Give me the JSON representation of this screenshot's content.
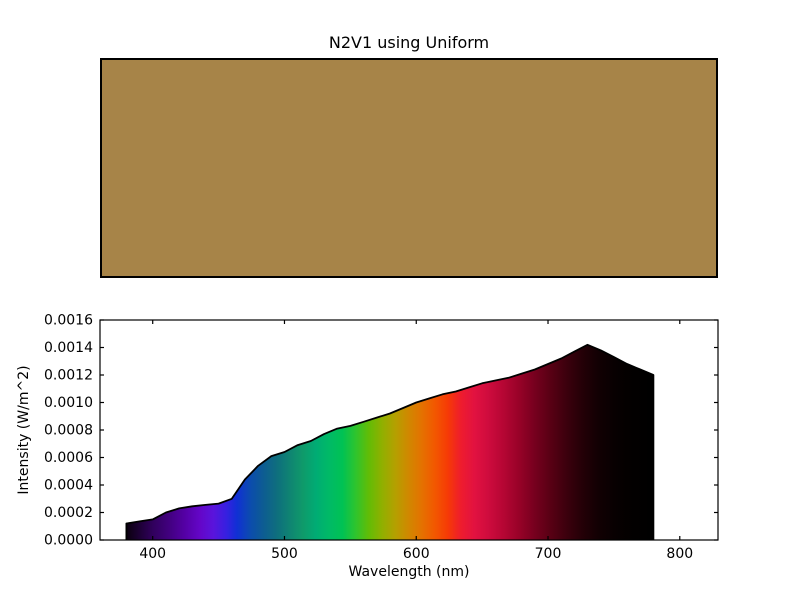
{
  "figure": {
    "title": "N2V1 using Uniform",
    "background_color": "#ffffff"
  },
  "swatch": {
    "description": "uniform rendered color panel",
    "fill_color": "#a78448",
    "border_color": "#000000"
  },
  "chart_data": {
    "type": "area",
    "title": "N2V1 using Uniform",
    "xlabel": "Wavelength (nm)",
    "ylabel": "Intensity (W/m^2)",
    "xlim": [
      360,
      829
    ],
    "ylim": [
      0,
      0.0016
    ],
    "xticks": [
      400,
      500,
      600,
      700,
      800
    ],
    "xtick_labels": [
      "400",
      "500",
      "600",
      "700",
      "800"
    ],
    "yticks": [
      0,
      0.0002,
      0.0004,
      0.0006,
      0.0008,
      0.001,
      0.0012,
      0.0014,
      0.0016
    ],
    "ytick_labels": [
      "0.0000",
      "0.0002",
      "0.0004",
      "0.0006",
      "0.0008",
      "0.0010",
      "0.0012",
      "0.0014",
      "0.0016"
    ],
    "grid": false,
    "legend": null,
    "line_color": "#000000",
    "fill_style": "spectral-gradient",
    "series": [
      {
        "name": "spectral-distribution",
        "x": [
          380,
          390,
          400,
          410,
          420,
          430,
          440,
          450,
          460,
          470,
          480,
          490,
          500,
          510,
          520,
          530,
          540,
          550,
          560,
          570,
          580,
          590,
          600,
          610,
          620,
          630,
          640,
          650,
          660,
          670,
          680,
          690,
          700,
          710,
          720,
          730,
          740,
          750,
          760,
          770,
          780
        ],
        "y": [
          0.00012,
          0.000135,
          0.00015,
          0.0002,
          0.00023,
          0.000245,
          0.000255,
          0.000265,
          0.0003,
          0.00044,
          0.00054,
          0.00061,
          0.00064,
          0.00069,
          0.00072,
          0.00077,
          0.00081,
          0.00083,
          0.00086,
          0.00089,
          0.00092,
          0.00096,
          0.001,
          0.00103,
          0.00106,
          0.00108,
          0.00111,
          0.00114,
          0.00116,
          0.00118,
          0.00121,
          0.00124,
          0.00128,
          0.00132,
          0.00137,
          0.00142,
          0.00138,
          0.00133,
          0.00128,
          0.00124,
          0.0012
        ]
      }
    ],
    "spectral_gradient_stops": [
      {
        "wavelength": 380,
        "color": "#0a000e"
      },
      {
        "wavelength": 400,
        "color": "#30005c"
      },
      {
        "wavelength": 412,
        "color": "#41007e"
      },
      {
        "wavelength": 424,
        "color": "#5400a4"
      },
      {
        "wavelength": 436,
        "color": "#6406c8"
      },
      {
        "wavelength": 446,
        "color": "#5a14dc"
      },
      {
        "wavelength": 456,
        "color": "#3620e0"
      },
      {
        "wavelength": 464,
        "color": "#1030d4"
      },
      {
        "wavelength": 474,
        "color": "#0c4cae"
      },
      {
        "wavelength": 484,
        "color": "#0d5c92"
      },
      {
        "wavelength": 494,
        "color": "#0e6e7e"
      },
      {
        "wavelength": 504,
        "color": "#0f8472"
      },
      {
        "wavelength": 514,
        "color": "#0f9a6a"
      },
      {
        "wavelength": 524,
        "color": "#00ac74"
      },
      {
        "wavelength": 534,
        "color": "#00ba66"
      },
      {
        "wavelength": 544,
        "color": "#00c254"
      },
      {
        "wavelength": 554,
        "color": "#2ec42e"
      },
      {
        "wavelength": 564,
        "color": "#62bc06"
      },
      {
        "wavelength": 574,
        "color": "#90b000"
      },
      {
        "wavelength": 584,
        "color": "#b4a000"
      },
      {
        "wavelength": 594,
        "color": "#d08800"
      },
      {
        "wavelength": 604,
        "color": "#e47200"
      },
      {
        "wavelength": 614,
        "color": "#f25800"
      },
      {
        "wavelength": 624,
        "color": "#f63a06"
      },
      {
        "wavelength": 634,
        "color": "#ee1c2e"
      },
      {
        "wavelength": 644,
        "color": "#e21240"
      },
      {
        "wavelength": 654,
        "color": "#d00c3e"
      },
      {
        "wavelength": 666,
        "color": "#b60634"
      },
      {
        "wavelength": 678,
        "color": "#980228"
      },
      {
        "wavelength": 690,
        "color": "#76001e"
      },
      {
        "wavelength": 702,
        "color": "#580014"
      },
      {
        "wavelength": 714,
        "color": "#3c000d"
      },
      {
        "wavelength": 726,
        "color": "#240007"
      },
      {
        "wavelength": 738,
        "color": "#120003"
      },
      {
        "wavelength": 750,
        "color": "#080001"
      },
      {
        "wavelength": 765,
        "color": "#020000"
      },
      {
        "wavelength": 780,
        "color": "#000000"
      }
    ]
  }
}
